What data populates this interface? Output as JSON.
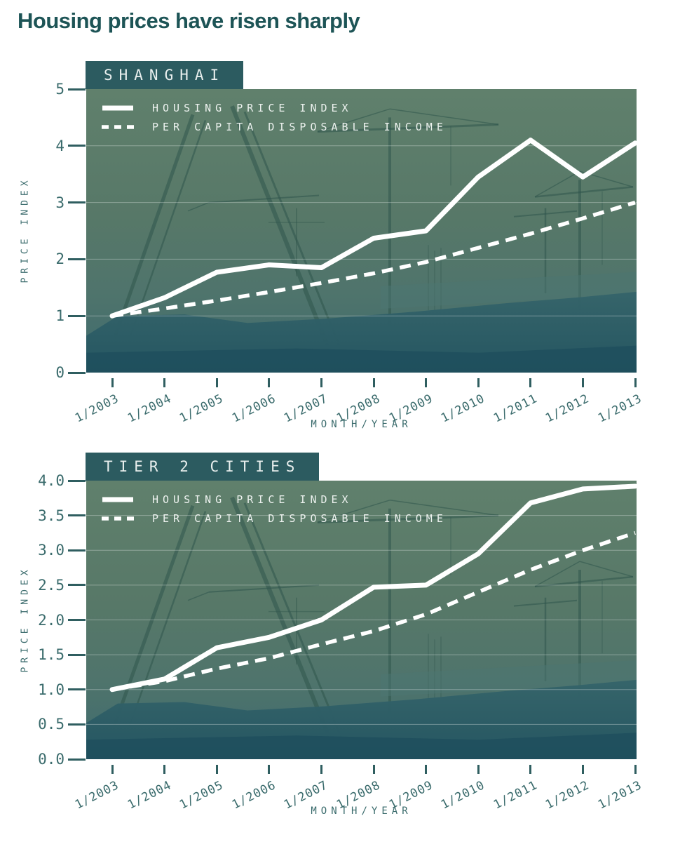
{
  "page": {
    "title": "Housing prices have risen sharply"
  },
  "colors": {
    "title_text": "#1d5456",
    "header_box": "#2c5b60",
    "axis_text": "#3a6b6c",
    "tick_mark": "#2f5e60",
    "line_color": "#ffffff",
    "photo_sky": "#5e7e6b",
    "photo_ground": "#2e5f66"
  },
  "chart_data": [
    {
      "type": "line",
      "title": "SHANGHAI",
      "xlabel": "MONTH/YEAR",
      "ylabel": "PRICE INDEX",
      "categories": [
        "1/2003",
        "1/2004",
        "1/2005",
        "1/2006",
        "1/2007",
        "1/2008",
        "1/2009",
        "1/2010",
        "1/2011",
        "1/2012",
        "1/2013"
      ],
      "ylim": [
        0,
        5
      ],
      "ytick_labels": [
        "5",
        "4",
        "3",
        "2",
        "1",
        "0"
      ],
      "grid": "horizontal white lines at integer values",
      "legend_position": "upper-left inside plot",
      "series": [
        {
          "name": "HOUSING PRICE INDEX",
          "style": "solid",
          "color": "#ffffff",
          "values": [
            1.0,
            1.32,
            1.77,
            1.9,
            1.85,
            2.37,
            2.5,
            3.45,
            4.1,
            3.45,
            4.05
          ]
        },
        {
          "name": "PER CAPITA DISPOSABLE INCOME",
          "style": "dashed",
          "color": "#ffffff",
          "values": [
            1.0,
            1.13,
            1.27,
            1.42,
            1.58,
            1.75,
            1.95,
            2.2,
            2.45,
            2.72,
            3.0
          ]
        }
      ]
    },
    {
      "type": "line",
      "title": "TIER 2 CITIES",
      "xlabel": "MONTH/YEAR",
      "ylabel": "PRICE INDEX",
      "categories": [
        "1/2003",
        "1/2004",
        "1/2005",
        "1/2006",
        "1/2007",
        "1/2008",
        "1/2009",
        "1/2010",
        "1/2011",
        "1/2012",
        "1/2013"
      ],
      "ylim": [
        0,
        4
      ],
      "ytick_labels": [
        "4.0",
        "3.5",
        "3.0",
        "2.5",
        "2.0",
        "1.5",
        "1.0",
        "0.5",
        "0.0"
      ],
      "grid": "horizontal white lines at 0.5 steps",
      "legend_position": "upper-left inside plot",
      "series": [
        {
          "name": "HOUSING PRICE INDEX",
          "style": "solid",
          "color": "#ffffff",
          "values": [
            1.0,
            1.15,
            1.6,
            1.75,
            2.0,
            2.47,
            2.5,
            2.95,
            3.68,
            3.88,
            3.92
          ]
        },
        {
          "name": "PER CAPITA DISPOSABLE INCOME",
          "style": "dashed",
          "color": "#ffffff",
          "values": [
            1.0,
            1.12,
            1.3,
            1.45,
            1.65,
            1.84,
            2.08,
            2.4,
            2.72,
            3.0,
            3.25
          ]
        }
      ]
    }
  ]
}
